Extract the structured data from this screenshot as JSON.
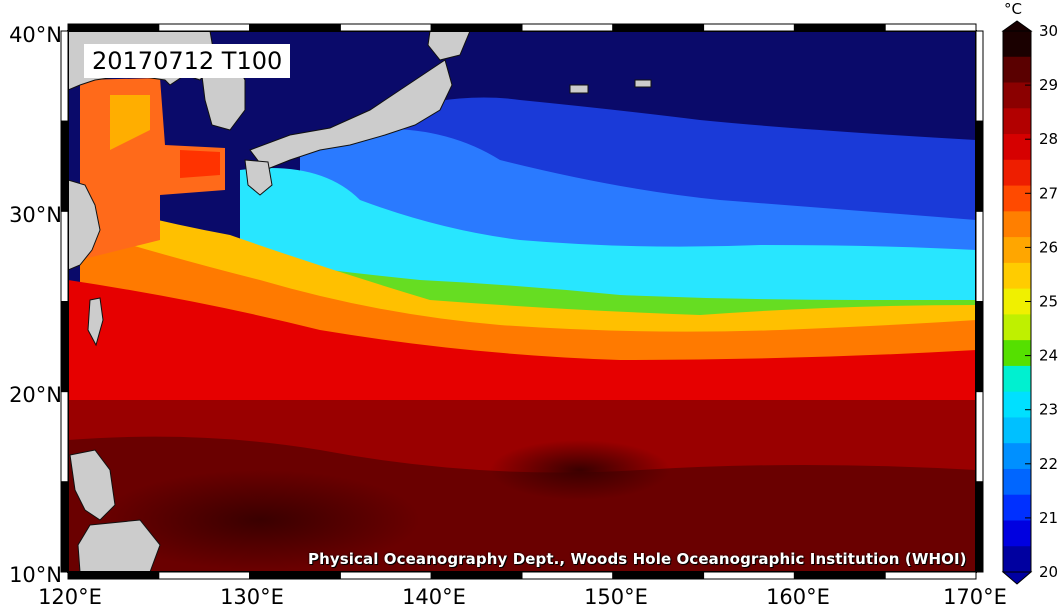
{
  "map": {
    "title": "20170712 T100",
    "credit": "Physical Oceanography Dept., Woods Hole Oceanographic Institution (WHOI)",
    "lon_labels": [
      "120°E",
      "130°E",
      "140°E",
      "150°E",
      "160°E",
      "170°E"
    ],
    "lat_labels": [
      "40°N",
      "30°N",
      "20°N",
      "10°N"
    ],
    "lon_range": [
      120,
      170
    ],
    "lat_range": [
      10,
      40
    ],
    "variable_unit": "°C"
  },
  "colorbar": {
    "unit": "°C",
    "labels": [
      "30",
      "29",
      "28",
      "27",
      "26",
      "25",
      "24",
      "23",
      "22",
      "21",
      "20"
    ],
    "range": [
      20,
      30
    ],
    "colors": [
      "#1a0000",
      "#5a0000",
      "#8b0000",
      "#b20000",
      "#d60000",
      "#ee1e00",
      "#ff4a00",
      "#ff7f00",
      "#ffa600",
      "#ffcc00",
      "#f0f000",
      "#bff000",
      "#55e000",
      "#00f0d0",
      "#00e0ff",
      "#00c0ff",
      "#0090ff",
      "#0066ff",
      "#0030ff",
      "#0000e0",
      "#0000a0"
    ]
  }
}
